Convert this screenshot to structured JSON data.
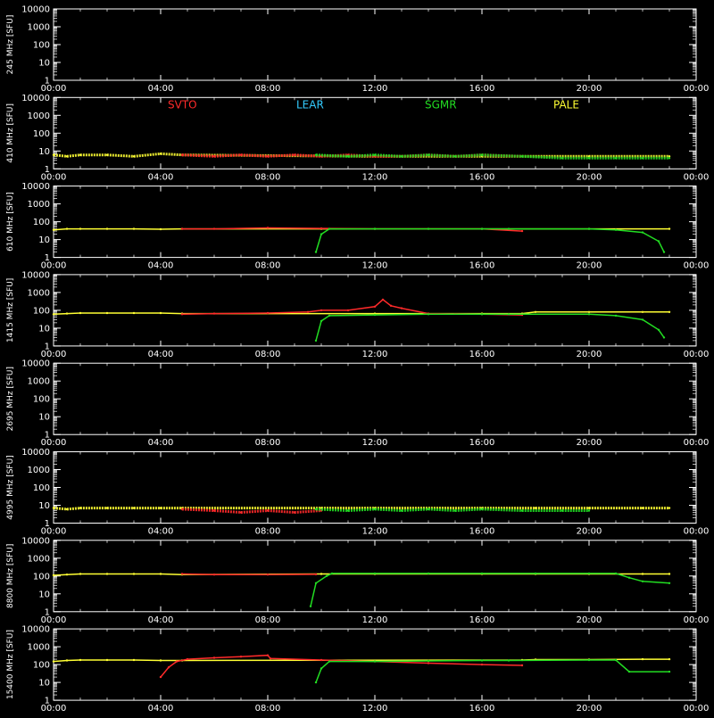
{
  "chart_data": [
    {
      "type": "line",
      "ylabel": "245 MHz  [SFU]",
      "yscale": "log",
      "ylim": [
        1,
        10000
      ],
      "yticks": [
        "10000",
        "1000",
        "100",
        "10",
        "1"
      ],
      "xlim": [
        "00:00",
        "24:00"
      ],
      "xticks": [
        "00:00",
        "04:00",
        "08:00",
        "12:00",
        "16:00",
        "20:00",
        "00:00"
      ],
      "series": [],
      "legend": []
    },
    {
      "type": "scatter",
      "ylabel": "410 MHz  [SFU]",
      "yscale": "log",
      "ylim": [
        1,
        10000
      ],
      "yticks": [
        "10000",
        "1000",
        "100",
        "10",
        "1"
      ],
      "xlim": [
        "00:00",
        "24:00"
      ],
      "xticks": [
        "00:00",
        "04:00",
        "08:00",
        "12:00",
        "16:00",
        "20:00",
        "00:00"
      ],
      "legend": [
        {
          "name": "SVTO",
          "color": "#ff2a2a"
        },
        {
          "name": "LEAR",
          "color": "#33ccff"
        },
        {
          "name": "SGMR",
          "color": "#22dd22"
        },
        {
          "name": "PALE",
          "color": "#ffff33"
        }
      ],
      "series": [
        {
          "color": "#ffff33",
          "points": [
            [
              0.0,
              6
            ],
            [
              0.5,
              5
            ],
            [
              1.0,
              6
            ],
            [
              2.0,
              6
            ],
            [
              3.0,
              5
            ],
            [
              4.0,
              7
            ],
            [
              4.8,
              6
            ],
            [
              12.0,
              5
            ],
            [
              16.0,
              5
            ],
            [
              20.0,
              5
            ],
            [
              23.0,
              5
            ]
          ]
        },
        {
          "color": "#ff2a2a",
          "points": [
            [
              4.8,
              6
            ],
            [
              6.0,
              5
            ],
            [
              7.0,
              6
            ],
            [
              8.0,
              5
            ],
            [
              9.0,
              6
            ],
            [
              10.0,
              5
            ],
            [
              11.0,
              6
            ],
            [
              12.0,
              5
            ],
            [
              13.0,
              5
            ],
            [
              14.0,
              6
            ],
            [
              15.0,
              5
            ],
            [
              16.0,
              6
            ],
            [
              17.5,
              5
            ]
          ]
        },
        {
          "color": "#22dd22",
          "points": [
            [
              9.8,
              6
            ],
            [
              11.0,
              5
            ],
            [
              12.0,
              6
            ],
            [
              13.0,
              5
            ],
            [
              14.0,
              6
            ],
            [
              15.0,
              5
            ],
            [
              16.0,
              6
            ],
            [
              17.5,
              5
            ],
            [
              19.0,
              4
            ],
            [
              20.0,
              4
            ],
            [
              21.0,
              4
            ],
            [
              22.0,
              4
            ],
            [
              23.0,
              4
            ]
          ]
        }
      ]
    },
    {
      "type": "line",
      "ylabel": "610 MHz  [SFU]",
      "yscale": "log",
      "ylim": [
        1,
        10000
      ],
      "yticks": [
        "10000",
        "1000",
        "100",
        "10",
        "1"
      ],
      "xlim": [
        "00:00",
        "24:00"
      ],
      "xticks": [
        "00:00",
        "04:00",
        "08:00",
        "12:00",
        "16:00",
        "20:00",
        "00:00"
      ],
      "series": [
        {
          "color": "#ffff33",
          "points": [
            [
              0.0,
              35
            ],
            [
              0.5,
              40
            ],
            [
              1.0,
              40
            ],
            [
              2.0,
              40
            ],
            [
              3.0,
              40
            ],
            [
              4.0,
              38
            ],
            [
              4.8,
              40
            ],
            [
              10.0,
              40
            ],
            [
              12.0,
              40
            ],
            [
              16.0,
              40
            ],
            [
              20.0,
              40
            ],
            [
              23.0,
              40
            ]
          ]
        },
        {
          "color": "#ff2a2a",
          "points": [
            [
              4.8,
              40
            ],
            [
              6.0,
              40
            ],
            [
              8.0,
              45
            ],
            [
              10.0,
              42
            ],
            [
              12.0,
              40
            ],
            [
              14.0,
              40
            ],
            [
              16.0,
              40
            ],
            [
              17.5,
              30
            ]
          ]
        },
        {
          "color": "#22dd22",
          "points": [
            [
              9.8,
              2
            ],
            [
              10.0,
              20
            ],
            [
              10.3,
              40
            ],
            [
              12.0,
              40
            ],
            [
              14.0,
              40
            ],
            [
              16.0,
              40
            ],
            [
              17.0,
              40
            ],
            [
              20.0,
              40
            ],
            [
              21.0,
              35
            ],
            [
              22.0,
              25
            ],
            [
              22.6,
              8
            ],
            [
              22.8,
              2
            ]
          ]
        }
      ]
    },
    {
      "type": "line",
      "ylabel": "1415 MHz  [SFU]",
      "yscale": "log",
      "ylim": [
        1,
        10000
      ],
      "yticks": [
        "10000",
        "1000",
        "100",
        "10",
        "1"
      ],
      "xlim": [
        "00:00",
        "24:00"
      ],
      "xticks": [
        "00:00",
        "04:00",
        "08:00",
        "12:00",
        "16:00",
        "20:00",
        "00:00"
      ],
      "series": [
        {
          "color": "#ffff33",
          "points": [
            [
              0.0,
              60
            ],
            [
              0.5,
              65
            ],
            [
              1.0,
              70
            ],
            [
              2.0,
              70
            ],
            [
              3.0,
              70
            ],
            [
              4.0,
              70
            ],
            [
              4.8,
              65
            ],
            [
              12.0,
              65
            ],
            [
              16.0,
              65
            ],
            [
              17.5,
              65
            ],
            [
              18.0,
              80
            ],
            [
              20.0,
              80
            ],
            [
              22.0,
              80
            ],
            [
              23.0,
              80
            ]
          ]
        },
        {
          "color": "#ff2a2a",
          "points": [
            [
              4.8,
              60
            ],
            [
              6.0,
              65
            ],
            [
              8.0,
              70
            ],
            [
              9.5,
              80
            ],
            [
              10.0,
              100
            ],
            [
              11.0,
              100
            ],
            [
              12.0,
              160
            ],
            [
              12.3,
              400
            ],
            [
              12.6,
              180
            ],
            [
              13.0,
              130
            ],
            [
              14.0,
              65
            ],
            [
              16.0,
              60
            ],
            [
              17.5,
              55
            ]
          ]
        },
        {
          "color": "#22dd22",
          "points": [
            [
              9.8,
              2
            ],
            [
              10.0,
              25
            ],
            [
              10.3,
              50
            ],
            [
              12.0,
              55
            ],
            [
              14.0,
              60
            ],
            [
              16.0,
              60
            ],
            [
              17.0,
              60
            ],
            [
              20.0,
              60
            ],
            [
              21.0,
              50
            ],
            [
              22.0,
              30
            ],
            [
              22.6,
              8
            ],
            [
              22.8,
              3
            ]
          ]
        }
      ]
    },
    {
      "type": "line",
      "ylabel": "2695 MHz  [SFU]",
      "yscale": "log",
      "ylim": [
        1,
        10000
      ],
      "yticks": [
        "10000",
        "1000",
        "100",
        "10",
        "1"
      ],
      "xlim": [
        "00:00",
        "24:00"
      ],
      "xticks": [
        "00:00",
        "04:00",
        "08:00",
        "12:00",
        "16:00",
        "20:00",
        "00:00"
      ],
      "series": []
    },
    {
      "type": "scatter",
      "ylabel": "4995 MHz  [SFU]",
      "yscale": "log",
      "ylim": [
        1,
        10000
      ],
      "yticks": [
        "10000",
        "1000",
        "100",
        "10",
        "1"
      ],
      "xlim": [
        "00:00",
        "24:00"
      ],
      "xticks": [
        "00:00",
        "04:00",
        "08:00",
        "12:00",
        "16:00",
        "20:00",
        "00:00"
      ],
      "series": [
        {
          "color": "#ffff33",
          "points": [
            [
              0.0,
              7
            ],
            [
              0.5,
              6
            ],
            [
              1.0,
              7
            ],
            [
              2.0,
              7
            ],
            [
              3.0,
              7
            ],
            [
              4.0,
              7
            ],
            [
              4.8,
              7
            ],
            [
              10.0,
              7
            ],
            [
              12.0,
              7
            ],
            [
              16.0,
              7
            ],
            [
              18.0,
              7
            ],
            [
              20.0,
              7
            ],
            [
              22.0,
              7
            ],
            [
              23.0,
              7
            ]
          ]
        },
        {
          "color": "#ff2a2a",
          "points": [
            [
              4.8,
              6
            ],
            [
              6.0,
              5
            ],
            [
              7.0,
              4
            ],
            [
              8.0,
              5
            ],
            [
              9.0,
              4
            ],
            [
              10.0,
              5
            ]
          ]
        },
        {
          "color": "#22dd22",
          "points": [
            [
              9.8,
              6
            ],
            [
              11.0,
              5
            ],
            [
              12.0,
              6
            ],
            [
              13.0,
              5
            ],
            [
              14.0,
              6
            ],
            [
              15.0,
              5
            ],
            [
              16.0,
              6
            ],
            [
              17.5,
              5
            ],
            [
              19.0,
              5
            ],
            [
              20.0,
              5
            ]
          ]
        }
      ]
    },
    {
      "type": "line",
      "ylabel": "8800 MHz  [SFU]",
      "yscale": "log",
      "ylim": [
        1,
        10000
      ],
      "yticks": [
        "10000",
        "1000",
        "100",
        "10",
        "1"
      ],
      "xlim": [
        "00:00",
        "24:00"
      ],
      "xticks": [
        "00:00",
        "04:00",
        "08:00",
        "12:00",
        "16:00",
        "20:00",
        "00:00"
      ],
      "series": [
        {
          "color": "#ffff33",
          "points": [
            [
              0.0,
              110
            ],
            [
              0.5,
              120
            ],
            [
              1.0,
              130
            ],
            [
              2.0,
              130
            ],
            [
              3.0,
              130
            ],
            [
              4.0,
              130
            ],
            [
              4.8,
              120
            ],
            [
              10.0,
              130
            ],
            [
              12.0,
              130
            ],
            [
              16.0,
              130
            ],
            [
              18.0,
              130
            ],
            [
              20.0,
              130
            ],
            [
              22.0,
              130
            ],
            [
              23.0,
              130
            ]
          ]
        },
        {
          "color": "#ff2a2a",
          "points": [
            [
              4.8,
              130
            ],
            [
              6.0,
              120
            ],
            [
              8.0,
              120
            ],
            [
              9.8,
              125
            ]
          ]
        },
        {
          "color": "#22dd22",
          "points": [
            [
              9.6,
              2
            ],
            [
              9.8,
              40
            ],
            [
              10.2,
              100
            ],
            [
              10.4,
              140
            ],
            [
              12.0,
              140
            ],
            [
              14.0,
              140
            ],
            [
              16.0,
              140
            ],
            [
              18.0,
              140
            ],
            [
              20.0,
              140
            ],
            [
              21.0,
              140
            ],
            [
              21.5,
              80
            ],
            [
              22.0,
              50
            ],
            [
              23.0,
              40
            ]
          ]
        }
      ]
    },
    {
      "type": "line",
      "ylabel": "15400 MHz  [SFU]",
      "yscale": "log",
      "ylim": [
        1,
        10000
      ],
      "yticks": [
        "10000",
        "1000",
        "100",
        "10",
        "1"
      ],
      "xlim": [
        "00:00",
        "24:00"
      ],
      "xticks": [
        "00:00",
        "04:00",
        "08:00",
        "12:00",
        "16:00",
        "20:00",
        "00:00"
      ],
      "series": [
        {
          "color": "#ffff33",
          "points": [
            [
              0.0,
              150
            ],
            [
              0.5,
              170
            ],
            [
              1.0,
              180
            ],
            [
              2.0,
              180
            ],
            [
              3.0,
              180
            ],
            [
              4.0,
              170
            ],
            [
              4.8,
              170
            ],
            [
              17.5,
              180
            ],
            [
              18.0,
              190
            ],
            [
              20.0,
              190
            ],
            [
              22.0,
              200
            ],
            [
              23.0,
              200
            ]
          ]
        },
        {
          "color": "#ff2a2a",
          "points": [
            [
              4.0,
              20
            ],
            [
              4.3,
              70
            ],
            [
              4.6,
              150
            ],
            [
              5.0,
              200
            ],
            [
              6.0,
              240
            ],
            [
              7.0,
              280
            ],
            [
              8.0,
              330
            ],
            [
              8.1,
              220
            ],
            [
              10.0,
              180
            ],
            [
              12.0,
              150
            ],
            [
              14.0,
              120
            ],
            [
              16.0,
              100
            ],
            [
              17.5,
              90
            ]
          ]
        },
        {
          "color": "#22dd22",
          "points": [
            [
              9.8,
              10
            ],
            [
              10.0,
              60
            ],
            [
              10.3,
              150
            ],
            [
              12.0,
              150
            ],
            [
              14.0,
              160
            ],
            [
              16.0,
              170
            ],
            [
              17.0,
              170
            ],
            [
              20.0,
              180
            ],
            [
              21.0,
              180
            ],
            [
              21.5,
              40
            ],
            [
              23.0,
              40
            ]
          ]
        }
      ]
    }
  ]
}
